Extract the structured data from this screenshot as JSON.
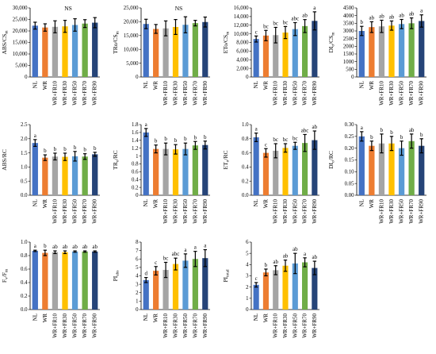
{
  "figure": {
    "categories": [
      "NL",
      "WR",
      "WR+FR10",
      "WR+FR30",
      "WR+FR50",
      "WR+FR70",
      "WR+FR90"
    ],
    "bar_colors": [
      "#4472C4",
      "#ED7D31",
      "#A5A5A5",
      "#FFC000",
      "#5B9BD5",
      "#70AD47",
      "#264478"
    ]
  },
  "chart_data": [
    {
      "type": "bar",
      "panel": "ABS/CSm",
      "ylabel": "ABS/CSm",
      "ylabel_main": "ABS/CS",
      "ylabel_sub": "m",
      "ylim": [
        0,
        30000
      ],
      "yticks": [
        "0",
        "5,000",
        "10,000",
        "15,000",
        "20,000",
        "25,000",
        "30,000"
      ],
      "values": [
        22300,
        21500,
        21800,
        22000,
        22600,
        23200,
        23600
      ],
      "errors": [
        1500,
        1600,
        2600,
        2600,
        2700,
        1700,
        2200
      ],
      "letters": [],
      "annotation": "NS"
    },
    {
      "type": "bar",
      "panel": "TRo/CSm",
      "ylabel": "TRo/CSm",
      "ylabel_main": "TRo/CS",
      "ylabel_sub": "m",
      "ylim": [
        0,
        25000
      ],
      "yticks": [
        "0",
        "5,000",
        "10,000",
        "15,000",
        "20,000",
        "25,000"
      ],
      "values": [
        19200,
        17400,
        17600,
        18100,
        18900,
        19500,
        19900
      ],
      "errors": [
        1700,
        1600,
        2700,
        2700,
        2900,
        1000,
        1800
      ],
      "letters": [],
      "annotation": "NS"
    },
    {
      "type": "bar",
      "panel": "ETo/CSm",
      "ylabel": "ETo/CSm",
      "ylabel_main": "ETo/CS",
      "ylabel_sub": "m",
      "ylim": [
        0,
        16000
      ],
      "yticks": [
        "0",
        "2,000",
        "4,000",
        "6,000",
        "8,000",
        "10,000",
        "12,000",
        "14,000",
        "16,000"
      ],
      "values": [
        8800,
        9600,
        9700,
        10300,
        11100,
        11800,
        13000
      ],
      "errors": [
        700,
        1200,
        1800,
        1400,
        1500,
        1500,
        2100
      ],
      "letters": [
        "c",
        "bc",
        "bc",
        "bc",
        "abc",
        "ab",
        "a"
      ],
      "annotation": ""
    },
    {
      "type": "bar",
      "panel": "DIo/CSm",
      "ylabel": "DIo/CSm",
      "ylabel_main": "DI",
      "ylabel_sub": "o",
      "ylabel_tail": "/CS",
      "ylabel_sub2": "m",
      "ylim": [
        0,
        4500
      ],
      "yticks": [
        "0",
        "500",
        "1000",
        "1500",
        "2000",
        "2500",
        "3000",
        "3500",
        "4000",
        "4500"
      ],
      "values": [
        3000,
        3250,
        3300,
        3350,
        3450,
        3500,
        3650
      ],
      "errors": [
        300,
        350,
        400,
        300,
        300,
        350,
        400
      ],
      "letters": [
        "b",
        "ab",
        "ab",
        "ab",
        "ab",
        "ab",
        "a"
      ],
      "annotation": ""
    },
    {
      "type": "bar",
      "panel": "ABS/RC",
      "ylabel": "ABS/RC",
      "ylabel_main": "ABS/RC",
      "ylim": [
        0,
        2.5
      ],
      "yticks": [
        "0.0",
        "0.5",
        "1.0",
        "1.5",
        "2.0",
        "2.5"
      ],
      "values": [
        1.85,
        1.33,
        1.37,
        1.36,
        1.38,
        1.37,
        1.45
      ],
      "errors": [
        0.12,
        0.1,
        0.12,
        0.13,
        0.17,
        0.1,
        0.07
      ],
      "letters": [
        "a",
        "b",
        "b",
        "b",
        "b",
        "b",
        "b"
      ],
      "annotation": ""
    },
    {
      "type": "bar",
      "panel": "TRo/RC",
      "ylabel": "TRo/RC",
      "ylabel_main": "TR",
      "ylabel_sub": "o",
      "ylabel_tail": "/RC",
      "ylim": [
        0,
        1.8
      ],
      "yticks": [
        "0",
        "0.2",
        "0.4",
        "0.6",
        "0.8",
        "1",
        "1.2",
        "1.4",
        "1.6",
        "1.8"
      ],
      "values": [
        1.6,
        1.18,
        1.18,
        1.17,
        1.18,
        1.27,
        1.28
      ],
      "errors": [
        0.1,
        0.1,
        0.15,
        0.12,
        0.15,
        0.1,
        0.1
      ],
      "letters": [
        "a",
        "b",
        "b",
        "b",
        "b",
        "b",
        "b"
      ],
      "annotation": ""
    },
    {
      "type": "bar",
      "panel": "ETo/RC",
      "ylabel": "ETo/RC",
      "ylabel_main": "ET",
      "ylabel_sub": "o",
      "ylabel_tail": "/RC",
      "ylim": [
        0,
        1.0
      ],
      "yticks": [
        "0.0",
        "0.2",
        "0.4",
        "0.6",
        "0.8",
        "1.0"
      ],
      "values": [
        0.82,
        0.6,
        0.63,
        0.67,
        0.7,
        0.74,
        0.78
      ],
      "errors": [
        0.06,
        0.06,
        0.1,
        0.06,
        0.05,
        0.12,
        0.13
      ],
      "letters": [
        "a",
        "c",
        "bc",
        "bc",
        "bc",
        "abc",
        "ab"
      ],
      "annotation": ""
    },
    {
      "type": "bar",
      "panel": "DIo/RC",
      "ylabel": "DIo/RC",
      "ylabel_main": "DI",
      "ylabel_sub": "o",
      "ylabel_tail": "/RC",
      "ylim": [
        0,
        0.3
      ],
      "yticks": [
        "0.00",
        "0.05",
        "0.10",
        "0.15",
        "0.20",
        "0.25",
        "0.30"
      ],
      "values": [
        0.25,
        0.21,
        0.22,
        0.22,
        0.2,
        0.23,
        0.21
      ],
      "errors": [
        0.02,
        0.02,
        0.04,
        0.03,
        0.03,
        0.03,
        0.03
      ],
      "letters": [
        "a",
        "b",
        "b",
        "b",
        "b",
        "ab",
        "b"
      ],
      "annotation": ""
    },
    {
      "type": "bar",
      "panel": "Fv/Fm",
      "ylabel": "Fv/Fm",
      "ylabel_main": "F",
      "ylabel_sub": "v",
      "ylabel_tail": "/F",
      "ylabel_sub2": "m",
      "ylim": [
        0,
        1.0
      ],
      "yticks": [
        "0.0",
        "0.2",
        "0.4",
        "0.6",
        "0.8",
        "1.0"
      ],
      "values": [
        0.87,
        0.84,
        0.85,
        0.85,
        0.86,
        0.86,
        0.86
      ],
      "errors": [
        0.01,
        0.04,
        0.02,
        0.02,
        0.01,
        0.01,
        0.01
      ],
      "letters": [
        "a",
        "b",
        "ab",
        "ab",
        "ab",
        "ab",
        "ab"
      ],
      "annotation": ""
    },
    {
      "type": "bar",
      "panel": "PIabs",
      "ylabel": "PIabs",
      "ylabel_main": "PI",
      "ylabel_sub": "abs",
      "ylim": [
        0,
        8
      ],
      "yticks": [
        "0",
        "1",
        "2",
        "3",
        "4",
        "5",
        "6",
        "7",
        "8"
      ],
      "values": [
        3.5,
        4.6,
        4.7,
        5.4,
        5.8,
        6.0,
        6.1
      ],
      "errors": [
        0.3,
        0.5,
        0.9,
        0.7,
        0.8,
        0.9,
        1.0
      ],
      "letters": [
        "d",
        "c",
        "bc",
        "abc",
        "a",
        "a",
        "a"
      ],
      "annotation": ""
    },
    {
      "type": "bar",
      "panel": "PItotal",
      "ylabel": "PItotal",
      "ylabel_main": "PI",
      "ylabel_sub": "total",
      "ylim": [
        0,
        6
      ],
      "yticks": [
        "0",
        "1",
        "2",
        "3",
        "4",
        "5",
        "6"
      ],
      "values": [
        2.2,
        3.3,
        3.5,
        3.9,
        4.1,
        4.2,
        3.7
      ],
      "errors": [
        0.2,
        0.3,
        0.4,
        0.5,
        0.9,
        0.4,
        0.6
      ],
      "letters": [
        "c",
        "b",
        "ab",
        "ab",
        "ab",
        "a",
        "ab"
      ],
      "annotation": ""
    }
  ]
}
